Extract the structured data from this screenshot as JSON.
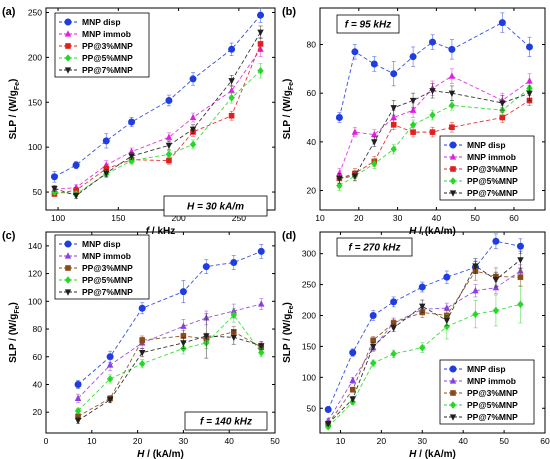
{
  "chart_data": [
    {
      "panel": "(a)",
      "type": "line",
      "annotation": "H = 30 kA/m",
      "xlabel_main": "f",
      "xlabel_unit": " / kHz",
      "ylabel_main": "SLP / (W/g",
      "ylabel_sub": "Fe",
      "ylabel_end": ")",
      "xlim": [
        90,
        280
      ],
      "ylim": [
        30,
        255
      ],
      "xticks": [
        100,
        150,
        200,
        250
      ],
      "yticks": [
        50,
        100,
        150,
        200,
        250
      ],
      "legend_position": "top-left",
      "series": [
        {
          "name": "MNP disp",
          "color": "#1f3de0",
          "marker": "circle",
          "x": [
            97,
            115,
            140,
            161,
            192,
            212,
            244,
            268
          ],
          "y": [
            67,
            80,
            107,
            128,
            152,
            176,
            209,
            247
          ],
          "err": [
            6,
            4,
            8,
            5,
            6,
            7,
            7,
            8
          ]
        },
        {
          "name": "MNP immob",
          "color": "#e020e0",
          "marker": "triangle-up",
          "x": [
            97,
            115,
            140,
            161,
            192,
            212,
            244,
            268
          ],
          "y": [
            53,
            55,
            80,
            95,
            111,
            133,
            163,
            209
          ],
          "err": [
            4,
            3,
            5,
            4,
            5,
            5,
            6,
            8
          ]
        },
        {
          "name": "PP@3%MNP",
          "color": "#e02020",
          "marker": "square",
          "x": [
            97,
            115,
            140,
            161,
            192,
            212,
            244,
            268
          ],
          "y": [
            48,
            52,
            76,
            86,
            85,
            117,
            135,
            215
          ],
          "err": [
            3,
            3,
            4,
            4,
            4,
            5,
            5,
            7
          ]
        },
        {
          "name": "PP@5%MNP",
          "color": "#28d828",
          "marker": "diamond",
          "x": [
            97,
            115,
            140,
            161,
            192,
            212,
            244,
            268
          ],
          "y": [
            50,
            48,
            70,
            85,
            92,
            103,
            155,
            185
          ],
          "err": [
            3,
            3,
            4,
            4,
            4,
            5,
            6,
            8
          ]
        },
        {
          "name": "PP@7%MNP",
          "color": "#202020",
          "marker": "triangle-down",
          "x": [
            97,
            115,
            140,
            161,
            192,
            212,
            244,
            268
          ],
          "y": [
            54,
            46,
            71,
            90,
            102,
            120,
            174,
            228
          ],
          "err": [
            3,
            3,
            4,
            4,
            5,
            5,
            6,
            7
          ]
        }
      ]
    },
    {
      "panel": "(b)",
      "type": "line",
      "annotation": "f = 95 kHz",
      "xlabel_main": "H",
      "xlabel_unit": " / (kA/m)",
      "ylabel_main": "SLP / (W/g",
      "ylabel_sub": "Fe",
      "ylabel_end": ")",
      "xlim": [
        10,
        68
      ],
      "ylim": [
        12,
        95
      ],
      "xticks": [
        10,
        20,
        30,
        40,
        50,
        60
      ],
      "yticks": [
        20,
        40,
        60,
        80
      ],
      "legend_position": "bottom-right",
      "series": [
        {
          "name": "MNP disp",
          "color": "#1f3de0",
          "marker": "circle",
          "x": [
            15,
            19,
            24,
            29,
            34,
            39,
            44,
            57,
            64
          ],
          "y": [
            50,
            77,
            72,
            68,
            75,
            81,
            78,
            89,
            79
          ],
          "err": [
            2,
            3,
            3,
            5,
            4,
            3,
            4,
            4,
            4
          ]
        },
        {
          "name": "MNP immob",
          "color": "#e020e0",
          "marker": "triangle-up",
          "x": [
            15,
            19,
            24,
            29,
            34,
            39,
            44,
            57,
            64
          ],
          "y": [
            27,
            44,
            43,
            50,
            53,
            62,
            67,
            57,
            65
          ],
          "err": [
            2,
            2,
            2,
            3,
            3,
            3,
            3,
            3,
            3
          ]
        },
        {
          "name": "PP@3%MNP",
          "color": "#e02020",
          "marker": "square",
          "x": [
            15,
            19,
            24,
            29,
            34,
            39,
            44,
            57,
            64
          ],
          "y": [
            25,
            27,
            32,
            47,
            44,
            44,
            46,
            50,
            57
          ],
          "err": [
            2,
            2,
            2,
            2,
            2,
            2,
            2,
            2,
            2
          ]
        },
        {
          "name": "PP@5%MNP",
          "color": "#28d828",
          "marker": "diamond",
          "x": [
            15,
            19,
            24,
            29,
            34,
            39,
            44,
            57,
            64
          ],
          "y": [
            22,
            26,
            31,
            37,
            47,
            51,
            55,
            53,
            62
          ],
          "err": [
            2,
            2,
            2,
            2,
            2,
            2,
            2,
            2,
            2
          ]
        },
        {
          "name": "PP@7%MNP",
          "color": "#202020",
          "marker": "triangle-down",
          "x": [
            15,
            19,
            24,
            29,
            34,
            39,
            44,
            57,
            64
          ],
          "y": [
            25,
            26,
            40,
            54,
            57,
            61,
            60,
            56,
            60
          ],
          "err": [
            2,
            2,
            2,
            3,
            3,
            3,
            3,
            3,
            3
          ]
        }
      ]
    },
    {
      "panel": "(c)",
      "type": "line",
      "annotation": "f = 140 kHz",
      "xlabel_main": "H",
      "xlabel_unit": " / (kA/m)",
      "ylabel_main": "SLP / (W/g",
      "ylabel_sub": "Fe",
      "ylabel_end": ")",
      "xlim": [
        0,
        50
      ],
      "ylim": [
        5,
        150
      ],
      "xticks": [
        0,
        10,
        20,
        30,
        40,
        50
      ],
      "yticks": [
        20,
        40,
        60,
        80,
        100,
        120,
        140
      ],
      "legend_position": "top-left",
      "series": [
        {
          "name": "MNP disp",
          "color": "#1f3de0",
          "marker": "circle",
          "x": [
            7,
            14,
            21,
            30,
            35,
            41,
            47
          ],
          "y": [
            40,
            60,
            95,
            107,
            125,
            128,
            136
          ],
          "err": [
            3,
            4,
            4,
            8,
            5,
            5,
            5
          ]
        },
        {
          "name": "MNP immob",
          "color": "#8a40e0",
          "marker": "triangle-up",
          "x": [
            7,
            14,
            21,
            30,
            35,
            41,
            47
          ],
          "y": [
            30,
            54,
            70,
            82,
            88,
            93,
            98
          ],
          "err": [
            3,
            4,
            4,
            5,
            5,
            5,
            4
          ]
        },
        {
          "name": "PP@3%MNP",
          "color": "#8a4a1a",
          "marker": "square",
          "x": [
            7,
            14,
            21,
            30,
            35,
            41,
            47
          ],
          "y": [
            17,
            30,
            72,
            75,
            73,
            78,
            67
          ],
          "err": [
            2,
            2,
            3,
            4,
            4,
            4,
            3
          ]
        },
        {
          "name": "PP@5%MNP",
          "color": "#28d828",
          "marker": "diamond",
          "x": [
            7,
            14,
            21,
            30,
            35,
            41,
            47
          ],
          "y": [
            21,
            44,
            55,
            66,
            70,
            90,
            63
          ],
          "err": [
            2,
            3,
            3,
            4,
            4,
            5,
            3
          ]
        },
        {
          "name": "PP@7%MNP",
          "color": "#202020",
          "marker": "triangle-down",
          "x": [
            7,
            14,
            21,
            30,
            35,
            41,
            47
          ],
          "y": [
            14,
            29,
            63,
            70,
            75,
            74,
            68
          ],
          "err": [
            2,
            2,
            3,
            4,
            16,
            5,
            3
          ]
        }
      ]
    },
    {
      "panel": "(d)",
      "type": "line",
      "annotation": "f = 270 kHz",
      "xlabel_main": "H",
      "xlabel_unit": " / (kA/m)",
      "ylabel_main": "SLP / (W/g",
      "ylabel_sub": "Fe",
      "ylabel_end": ")",
      "xlim": [
        5,
        60
      ],
      "ylim": [
        10,
        335
      ],
      "xticks": [
        10,
        20,
        30,
        40,
        50,
        60
      ],
      "yticks": [
        50,
        100,
        150,
        200,
        250,
        300
      ],
      "legend_position": "bottom-right",
      "series": [
        {
          "name": "MNP disp",
          "color": "#1f3de0",
          "marker": "circle",
          "x": [
            7,
            13,
            18,
            23,
            30,
            36,
            43,
            48,
            54
          ],
          "y": [
            48,
            140,
            200,
            222,
            246,
            262,
            278,
            320,
            312
          ],
          "err": [
            4,
            6,
            8,
            8,
            8,
            10,
            10,
            12,
            12
          ]
        },
        {
          "name": "MNP immob",
          "color": "#8a40e0",
          "marker": "triangle-up",
          "x": [
            7,
            13,
            18,
            23,
            30,
            36,
            43,
            48,
            54
          ],
          "y": [
            30,
            95,
            148,
            188,
            210,
            212,
            240,
            245,
            272
          ],
          "err": [
            3,
            5,
            6,
            8,
            8,
            8,
            10,
            10,
            10
          ]
        },
        {
          "name": "PP@3%MNP",
          "color": "#8a4a1a",
          "marker": "square",
          "x": [
            7,
            13,
            18,
            23,
            30,
            36,
            43,
            48,
            54
          ],
          "y": [
            25,
            80,
            160,
            188,
            205,
            200,
            272,
            263,
            262
          ],
          "err": [
            3,
            4,
            6,
            6,
            8,
            8,
            15,
            14,
            15
          ]
        },
        {
          "name": "PP@5%MNP",
          "color": "#28d828",
          "marker": "diamond",
          "x": [
            7,
            13,
            18,
            23,
            30,
            36,
            43,
            48,
            54
          ],
          "y": [
            20,
            60,
            123,
            138,
            148,
            182,
            202,
            208,
            218
          ],
          "err": [
            3,
            4,
            5,
            6,
            8,
            20,
            22,
            25,
            30
          ]
        },
        {
          "name": "PP@7%MNP",
          "color": "#202020",
          "marker": "triangle-down",
          "x": [
            7,
            13,
            18,
            23,
            30,
            36,
            43,
            48,
            54
          ],
          "y": [
            25,
            65,
            150,
            180,
            215,
            192,
            280,
            258,
            290
          ],
          "err": [
            3,
            4,
            6,
            6,
            10,
            8,
            12,
            12,
            14
          ]
        }
      ]
    }
  ]
}
